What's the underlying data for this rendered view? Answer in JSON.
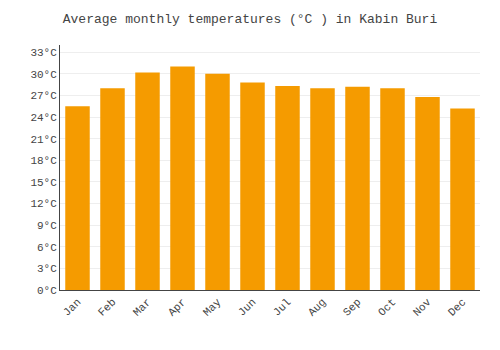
{
  "chart_data": {
    "type": "bar",
    "title": "Average monthly temperatures (°C ) in Kabin Buri",
    "categories": [
      "Jan",
      "Feb",
      "Mar",
      "Apr",
      "May",
      "Jun",
      "Jul",
      "Aug",
      "Sep",
      "Oct",
      "Nov",
      "Dec"
    ],
    "values": [
      25.5,
      28.0,
      30.2,
      31.0,
      30.0,
      28.8,
      28.3,
      28.0,
      28.2,
      28.0,
      26.8,
      25.2
    ],
    "color": "#F59B00",
    "ylim": [
      0,
      34
    ],
    "yticks": [
      {
        "value": 0,
        "label": "0°C"
      },
      {
        "value": 3,
        "label": "3°C"
      },
      {
        "value": 6,
        "label": "6°C"
      },
      {
        "value": 9,
        "label": "9°C"
      },
      {
        "value": 12,
        "label": "12°C"
      },
      {
        "value": 15,
        "label": "15°C"
      },
      {
        "value": 18,
        "label": "18°C"
      },
      {
        "value": 21,
        "label": "21°C"
      },
      {
        "value": 24,
        "label": "24°C"
      },
      {
        "value": 27,
        "label": "27°C"
      },
      {
        "value": 30,
        "label": "30°C"
      },
      {
        "value": 33,
        "label": "33°C"
      }
    ],
    "grid": true
  }
}
